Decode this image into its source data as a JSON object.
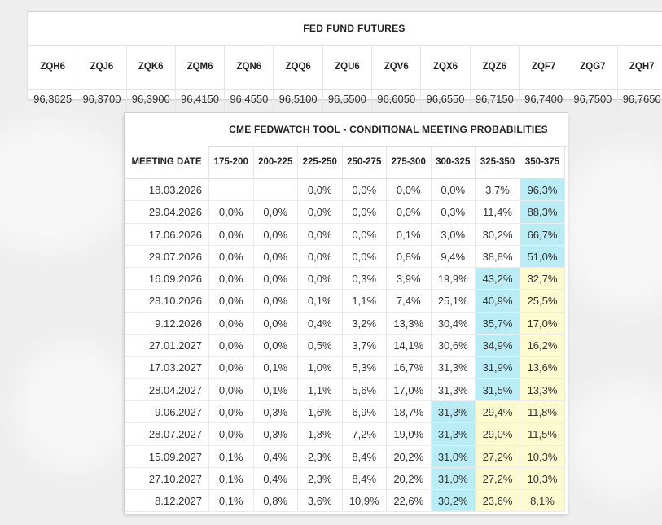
{
  "futures": {
    "title": "FED FUND FUTURES",
    "contracts": [
      {
        "code": "ZQH6",
        "price": "96,3625"
      },
      {
        "code": "ZQJ6",
        "price": "96,3700"
      },
      {
        "code": "ZQK6",
        "price": "96,3900"
      },
      {
        "code": "ZQM6",
        "price": "96,4150"
      },
      {
        "code": "ZQN6",
        "price": "96,4550"
      },
      {
        "code": "ZQQ6",
        "price": "96,5100"
      },
      {
        "code": "ZQU6",
        "price": "96,5500"
      },
      {
        "code": "ZQV6",
        "price": "96,6050"
      },
      {
        "code": "ZQX6",
        "price": "96,6550"
      },
      {
        "code": "ZQZ6",
        "price": "96,7150"
      },
      {
        "code": "ZQF7",
        "price": "96,7400"
      },
      {
        "code": "ZQG7",
        "price": "96,7500"
      },
      {
        "code": "ZQH7",
        "price": "96,7650"
      }
    ]
  },
  "fedwatch": {
    "title": "CME FEDWATCH TOOL - CONDITIONAL MEETING PROBABILITIES",
    "date_header": "MEETING DATE",
    "ranges": [
      "175-200",
      "200-225",
      "225-250",
      "250-275",
      "275-300",
      "300-325",
      "325-350",
      "350-375"
    ],
    "rows": [
      {
        "date": "18.03.2026",
        "values": [
          "",
          "",
          "0,0%",
          "0,0%",
          "0,0%",
          "0,0%",
          "3,7%",
          "96,3%"
        ],
        "colors": [
          "",
          "",
          "",
          "",
          "",
          "",
          "",
          "blue"
        ]
      },
      {
        "date": "29.04.2026",
        "values": [
          "0,0%",
          "0,0%",
          "0,0%",
          "0,0%",
          "0,0%",
          "0,3%",
          "11,4%",
          "88,3%"
        ],
        "colors": [
          "",
          "",
          "",
          "",
          "",
          "",
          "",
          "blue"
        ]
      },
      {
        "date": "17.06.2026",
        "values": [
          "0,0%",
          "0,0%",
          "0,0%",
          "0,0%",
          "0,1%",
          "3,0%",
          "30,2%",
          "66,7%"
        ],
        "colors": [
          "",
          "",
          "",
          "",
          "",
          "",
          "",
          "blue"
        ]
      },
      {
        "date": "29.07.2026",
        "values": [
          "0,0%",
          "0,0%",
          "0,0%",
          "0,0%",
          "0,8%",
          "9,4%",
          "38,8%",
          "51,0%"
        ],
        "colors": [
          "",
          "",
          "",
          "",
          "",
          "",
          "",
          "blue"
        ]
      },
      {
        "date": "16.09.2026",
        "values": [
          "0,0%",
          "0,0%",
          "0,0%",
          "0,3%",
          "3,9%",
          "19,9%",
          "43,2%",
          "32,7%"
        ],
        "colors": [
          "",
          "",
          "",
          "",
          "",
          "",
          "blue",
          "yellow"
        ]
      },
      {
        "date": "28.10.2026",
        "values": [
          "0,0%",
          "0,0%",
          "0,1%",
          "1,1%",
          "7,4%",
          "25,1%",
          "40,9%",
          "25,5%"
        ],
        "colors": [
          "",
          "",
          "",
          "",
          "",
          "",
          "blue",
          "yellow"
        ]
      },
      {
        "date": "9.12.2026",
        "values": [
          "0,0%",
          "0,0%",
          "0,4%",
          "3,2%",
          "13,3%",
          "30,4%",
          "35,7%",
          "17,0%"
        ],
        "colors": [
          "",
          "",
          "",
          "",
          "",
          "",
          "blue",
          "yellow"
        ]
      },
      {
        "date": "27.01.2027",
        "values": [
          "0,0%",
          "0,0%",
          "0,5%",
          "3,7%",
          "14,1%",
          "30,6%",
          "34,9%",
          "16,2%"
        ],
        "colors": [
          "",
          "",
          "",
          "",
          "",
          "",
          "blue",
          "yellow"
        ]
      },
      {
        "date": "17.03.2027",
        "values": [
          "0,0%",
          "0,1%",
          "1,0%",
          "5,3%",
          "16,7%",
          "31,3%",
          "31,9%",
          "13,6%"
        ],
        "colors": [
          "",
          "",
          "",
          "",
          "",
          "",
          "blue",
          "yellow"
        ]
      },
      {
        "date": "28.04.2027",
        "values": [
          "0,0%",
          "0,1%",
          "1,1%",
          "5,6%",
          "17,0%",
          "31,3%",
          "31,5%",
          "13,3%"
        ],
        "colors": [
          "",
          "",
          "",
          "",
          "",
          "",
          "blue",
          "yellow"
        ]
      },
      {
        "date": "9.06.2027",
        "values": [
          "0,0%",
          "0,3%",
          "1,6%",
          "6,9%",
          "18,7%",
          "31,3%",
          "29,4%",
          "11,8%"
        ],
        "colors": [
          "",
          "",
          "",
          "",
          "",
          "blue",
          "yellow",
          "yellow"
        ]
      },
      {
        "date": "28.07.2027",
        "values": [
          "0,0%",
          "0,3%",
          "1,8%",
          "7,2%",
          "19,0%",
          "31,3%",
          "29,0%",
          "11,5%"
        ],
        "colors": [
          "",
          "",
          "",
          "",
          "",
          "blue",
          "yellow",
          "yellow"
        ]
      },
      {
        "date": "15.09.2027",
        "values": [
          "0,1%",
          "0,4%",
          "2,3%",
          "8,4%",
          "20,2%",
          "31,0%",
          "27,2%",
          "10,3%"
        ],
        "colors": [
          "",
          "",
          "",
          "",
          "",
          "blue",
          "yellow",
          "yellow"
        ]
      },
      {
        "date": "27.10.2027",
        "values": [
          "0,1%",
          "0,4%",
          "2,3%",
          "8,4%",
          "20,2%",
          "31,0%",
          "27,2%",
          "10,3%"
        ],
        "colors": [
          "",
          "",
          "",
          "",
          "",
          "blue",
          "yellow",
          "yellow"
        ]
      },
      {
        "date": "8.12.2027",
        "values": [
          "0,1%",
          "0,8%",
          "3,6%",
          "10,9%",
          "22,6%",
          "30,2%",
          "23,6%",
          "8,1%"
        ],
        "colors": [
          "",
          "",
          "",
          "",
          "",
          "blue",
          "yellow",
          "yellow"
        ]
      }
    ]
  }
}
